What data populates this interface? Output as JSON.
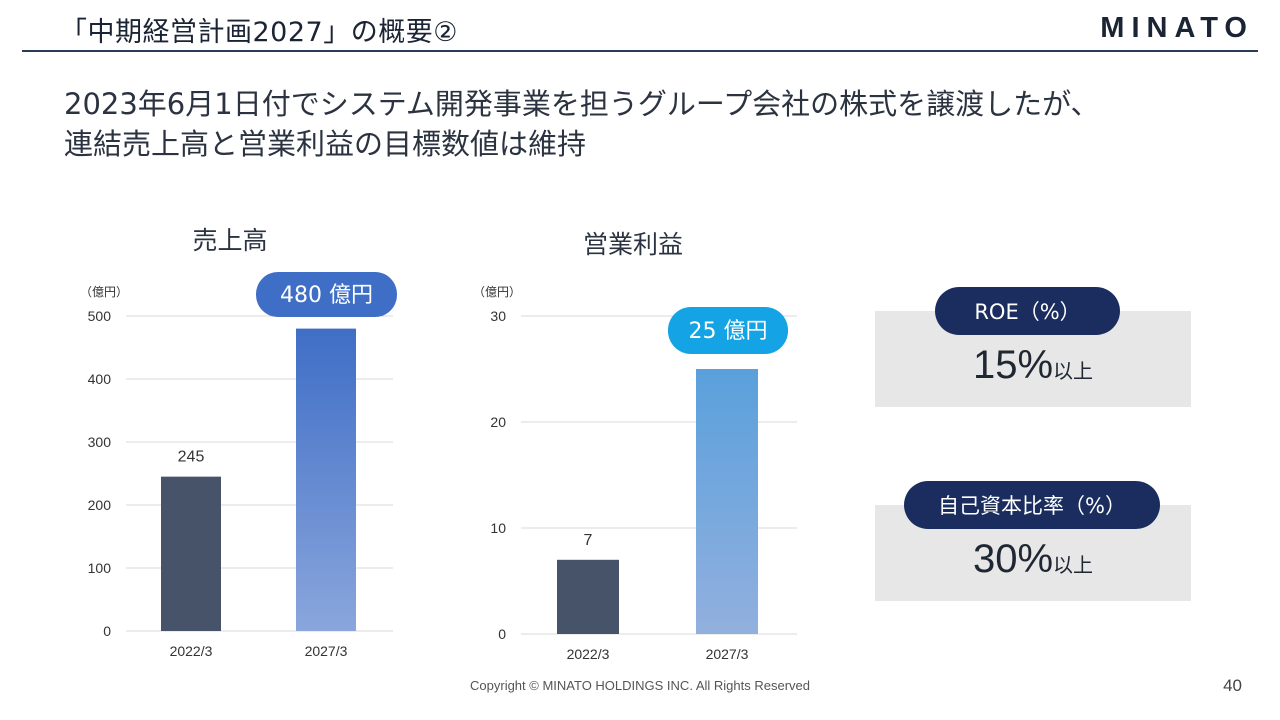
{
  "header": {
    "title": "「中期経営計画2027」の概要②",
    "brand": "MINATO"
  },
  "headline": {
    "line1": "2023年6月1日付でシステム開発事業を担うグループ会社の株式を譲渡したが、",
    "line2": "連結売上高と営業利益の目標数値は維持"
  },
  "chart_data": [
    {
      "type": "bar",
      "title": "売上高",
      "unit_label": "（億円）",
      "categories": [
        "2022/3",
        "2027/3"
      ],
      "values": [
        245,
        480
      ],
      "data_labels": [
        "245",
        ""
      ],
      "callout": "480 億円",
      "ylim": [
        0,
        500
      ],
      "yticks": [
        0,
        100,
        200,
        300,
        400,
        500
      ],
      "grid": true,
      "colors": {
        "actual": "#465368",
        "target_top": "#3f6ec6",
        "target_bottom": "#8aa6dc",
        "callout": "#3f6ec6"
      }
    },
    {
      "type": "bar",
      "title": "営業利益",
      "unit_label": "（億円）",
      "categories": [
        "2022/3",
        "2027/3"
      ],
      "values": [
        7,
        25
      ],
      "data_labels": [
        "7",
        ""
      ],
      "callout": "25 億円",
      "ylim": [
        0,
        30
      ],
      "yticks": [
        0,
        10,
        20,
        30
      ],
      "grid": true,
      "colors": {
        "actual": "#465368",
        "target_top": "#5aa0dc",
        "target_bottom": "#92b0de",
        "callout": "#14a3e4"
      }
    }
  ],
  "kpis": [
    {
      "label": "ROE（%）",
      "value": "15%",
      "suffix": "以上"
    },
    {
      "label": "自己資本比率（%）",
      "value": "30%",
      "suffix": "以上"
    }
  ],
  "footer": {
    "copyright": "Copyright © MINATO HOLDINGS INC. All Rights Reserved",
    "page": "40"
  }
}
